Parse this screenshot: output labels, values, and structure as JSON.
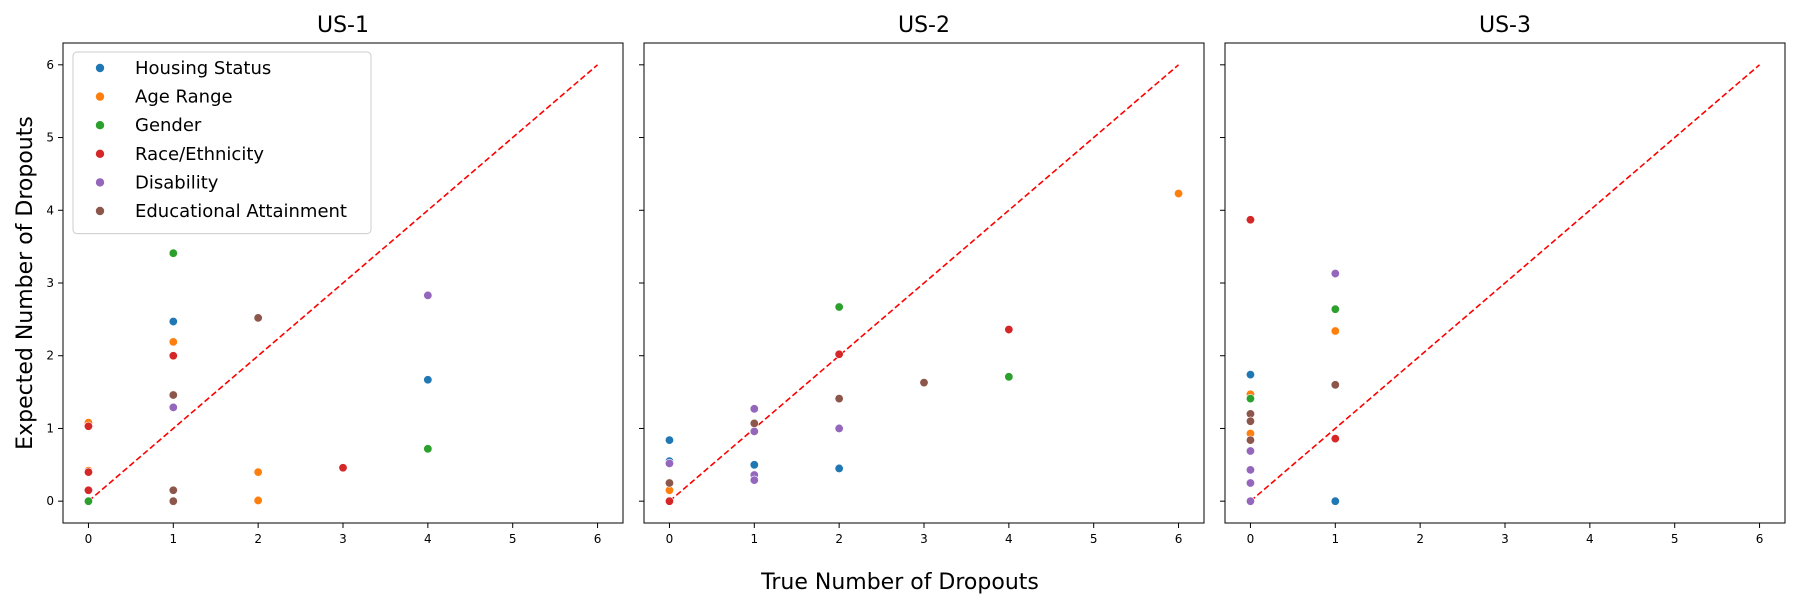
{
  "figure": {
    "xlabel": "True Number of Dropouts",
    "ylabel": "Expected Number of Dropouts"
  },
  "legend": {
    "placement": "upper-left of first panel",
    "entries": [
      {
        "label": "Housing Status",
        "color": "#1f77b4"
      },
      {
        "label": "Age Range",
        "color": "#ff7f0e"
      },
      {
        "label": "Gender",
        "color": "#2ca02c"
      },
      {
        "label": "Race/Ethnicity",
        "color": "#d62728"
      },
      {
        "label": "Disability",
        "color": "#9467bd"
      },
      {
        "label": "Educational Attainment",
        "color": "#8c564b"
      }
    ]
  },
  "reference_line": {
    "style": "dashed",
    "color": "#ff0000",
    "from": [
      0,
      0
    ],
    "to": [
      6,
      6
    ]
  },
  "chart_data": [
    {
      "type": "scatter",
      "title": "US-1",
      "xlim": [
        -0.3,
        6.3
      ],
      "ylim": [
        -0.3,
        6.3
      ],
      "xticks": [
        0,
        1,
        2,
        3,
        4,
        5,
        6
      ],
      "yticks": [
        0,
        1,
        2,
        3,
        4,
        5,
        6
      ],
      "show_yticklabels": true,
      "series": [
        {
          "name": "Housing Status",
          "color": "#1f77b4",
          "points": [
            [
              1,
              2.47
            ],
            [
              4,
              1.67
            ]
          ]
        },
        {
          "name": "Age Range",
          "color": "#ff7f0e",
          "points": [
            [
              0,
              1.08
            ],
            [
              0,
              0.42
            ],
            [
              1,
              2.19
            ],
            [
              2,
              0.4
            ],
            [
              2,
              0.01
            ]
          ]
        },
        {
          "name": "Gender",
          "color": "#2ca02c",
          "points": [
            [
              1,
              3.41
            ],
            [
              0,
              0.0
            ],
            [
              4,
              0.72
            ]
          ]
        },
        {
          "name": "Race/Ethnicity",
          "color": "#d62728",
          "points": [
            [
              0,
              1.03
            ],
            [
              0,
              0.4
            ],
            [
              0,
              0.15
            ],
            [
              1,
              2.0
            ],
            [
              3,
              0.46
            ]
          ]
        },
        {
          "name": "Disability",
          "color": "#9467bd",
          "points": [
            [
              1,
              1.29
            ],
            [
              4,
              2.83
            ]
          ]
        },
        {
          "name": "Educational Attainment",
          "color": "#8c564b",
          "points": [
            [
              1,
              1.46
            ],
            [
              1,
              0.15
            ],
            [
              1,
              0.0
            ],
            [
              2,
              2.52
            ]
          ]
        }
      ]
    },
    {
      "type": "scatter",
      "title": "US-2",
      "xlim": [
        -0.3,
        6.3
      ],
      "ylim": [
        -0.3,
        6.3
      ],
      "xticks": [
        0,
        1,
        2,
        3,
        4,
        5,
        6
      ],
      "yticks": [
        0,
        1,
        2,
        3,
        4,
        5,
        6
      ],
      "show_yticklabels": false,
      "series": [
        {
          "name": "Housing Status",
          "color": "#1f77b4",
          "points": [
            [
              0,
              0.84
            ],
            [
              0,
              0.55
            ],
            [
              1,
              0.5
            ],
            [
              2,
              0.45
            ]
          ]
        },
        {
          "name": "Age Range",
          "color": "#ff7f0e",
          "points": [
            [
              0,
              0.15
            ],
            [
              6,
              4.23
            ]
          ]
        },
        {
          "name": "Gender",
          "color": "#2ca02c",
          "points": [
            [
              2,
              2.67
            ],
            [
              4,
              1.71
            ]
          ]
        },
        {
          "name": "Race/Ethnicity",
          "color": "#d62728",
          "points": [
            [
              0,
              0.0
            ],
            [
              2,
              2.02
            ],
            [
              4,
              2.36
            ]
          ]
        },
        {
          "name": "Disability",
          "color": "#9467bd",
          "points": [
            [
              0,
              0.52
            ],
            [
              1,
              1.27
            ],
            [
              1,
              0.96
            ],
            [
              1,
              0.36
            ],
            [
              1,
              0.29
            ],
            [
              2,
              1.0
            ]
          ]
        },
        {
          "name": "Educational Attainment",
          "color": "#8c564b",
          "points": [
            [
              0,
              0.25
            ],
            [
              1,
              1.07
            ],
            [
              2,
              1.41
            ],
            [
              3,
              1.63
            ]
          ]
        }
      ]
    },
    {
      "type": "scatter",
      "title": "US-3",
      "xlim": [
        -0.3,
        6.3
      ],
      "ylim": [
        -0.3,
        6.3
      ],
      "xticks": [
        0,
        1,
        2,
        3,
        4,
        5,
        6
      ],
      "yticks": [
        0,
        1,
        2,
        3,
        4,
        5,
        6
      ],
      "show_yticklabels": false,
      "series": [
        {
          "name": "Housing Status",
          "color": "#1f77b4",
          "points": [
            [
              0,
              1.74
            ],
            [
              1,
              0.0
            ]
          ]
        },
        {
          "name": "Age Range",
          "color": "#ff7f0e",
          "points": [
            [
              0,
              1.47
            ],
            [
              0,
              0.93
            ],
            [
              1,
              2.34
            ]
          ]
        },
        {
          "name": "Gender",
          "color": "#2ca02c",
          "points": [
            [
              0,
              1.41
            ],
            [
              1,
              2.64
            ]
          ]
        },
        {
          "name": "Race/Ethnicity",
          "color": "#d62728",
          "points": [
            [
              0,
              3.87
            ],
            [
              1,
              0.86
            ]
          ]
        },
        {
          "name": "Disability",
          "color": "#9467bd",
          "points": [
            [
              0,
              0.69
            ],
            [
              0,
              0.43
            ],
            [
              0,
              0.25
            ],
            [
              0,
              0.0
            ],
            [
              1,
              3.13
            ]
          ]
        },
        {
          "name": "Educational Attainment",
          "color": "#8c564b",
          "points": [
            [
              0,
              1.2
            ],
            [
              0,
              1.1
            ],
            [
              0,
              0.84
            ],
            [
              1,
              1.6
            ]
          ]
        }
      ]
    }
  ]
}
